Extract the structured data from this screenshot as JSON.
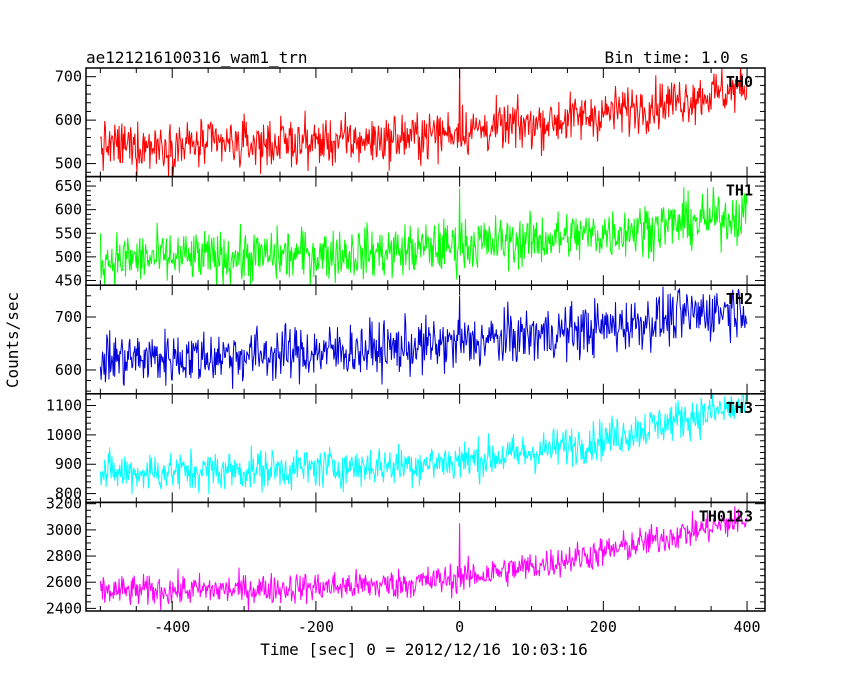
{
  "header": {
    "title": "ae121216100316_wam1_trn",
    "bin_time": "Bin time: 1.0 s"
  },
  "chart_data": {
    "type": "line",
    "title": "ae121216100316_wam1_trn",
    "xlabel": "Time [sec] 0 = 2012/12/16 10:03:16",
    "ylabel": "Counts/sec",
    "xlim": [
      -520,
      425
    ],
    "x_ticks": [
      -400,
      -200,
      0,
      200,
      400
    ],
    "x_range": [
      -500,
      400
    ],
    "bin_time_s": 1.0,
    "panels": [
      {
        "name": "TH0",
        "color": "#ff0000",
        "ylim": [
          470,
          720
        ],
        "y_ticks": [
          500,
          600,
          700
        ],
        "trend": [
          [
            -500,
            540
          ],
          [
            -300,
            545
          ],
          [
            -100,
            555
          ],
          [
            0,
            575
          ],
          [
            100,
            590
          ],
          [
            200,
            615
          ],
          [
            300,
            645
          ],
          [
            400,
            675
          ]
        ],
        "noise": 28,
        "spike": {
          "x": 0,
          "y": 720
        }
      },
      {
        "name": "TH1",
        "color": "#00ff00",
        "ylim": [
          440,
          670
        ],
        "y_ticks": [
          450,
          500,
          550,
          600,
          650
        ],
        "trend": [
          [
            -500,
            495
          ],
          [
            -300,
            500
          ],
          [
            -100,
            510
          ],
          [
            0,
            525
          ],
          [
            100,
            535
          ],
          [
            200,
            550
          ],
          [
            300,
            570
          ],
          [
            400,
            590
          ]
        ],
        "noise": 28,
        "spike": {
          "x": 0,
          "y": 645
        }
      },
      {
        "name": "TH2",
        "color": "#0000dd",
        "ylim": [
          555,
          760
        ],
        "y_ticks": [
          600,
          700
        ],
        "trend": [
          [
            -500,
            620
          ],
          [
            -300,
            628
          ],
          [
            -100,
            640
          ],
          [
            0,
            650
          ],
          [
            100,
            665
          ],
          [
            200,
            680
          ],
          [
            300,
            700
          ],
          [
            400,
            720
          ]
        ],
        "noise": 26,
        "spike": {
          "x": 0,
          "y": 740
        }
      },
      {
        "name": "TH3",
        "color": "#00ffff",
        "ylim": [
          770,
          1140
        ],
        "y_ticks": [
          800,
          900,
          1000,
          1100
        ],
        "trend": [
          [
            -500,
            870
          ],
          [
            -300,
            880
          ],
          [
            -100,
            895
          ],
          [
            0,
            910
          ],
          [
            100,
            940
          ],
          [
            200,
            985
          ],
          [
            300,
            1050
          ],
          [
            400,
            1100
          ]
        ],
        "noise": 35,
        "spike": {
          "x": 0,
          "y": 960
        }
      },
      {
        "name": "TH0123",
        "color": "#ff00ff",
        "ylim": [
          2380,
          3210
        ],
        "y_ticks": [
          2400,
          2600,
          2800,
          3000,
          3200
        ],
        "trend": [
          [
            -500,
            2530
          ],
          [
            -300,
            2545
          ],
          [
            -100,
            2580
          ],
          [
            0,
            2630
          ],
          [
            100,
            2720
          ],
          [
            200,
            2830
          ],
          [
            300,
            2960
          ],
          [
            400,
            3080
          ]
        ],
        "noise": 60,
        "spike": {
          "x": 0,
          "y": 3050
        }
      }
    ]
  }
}
